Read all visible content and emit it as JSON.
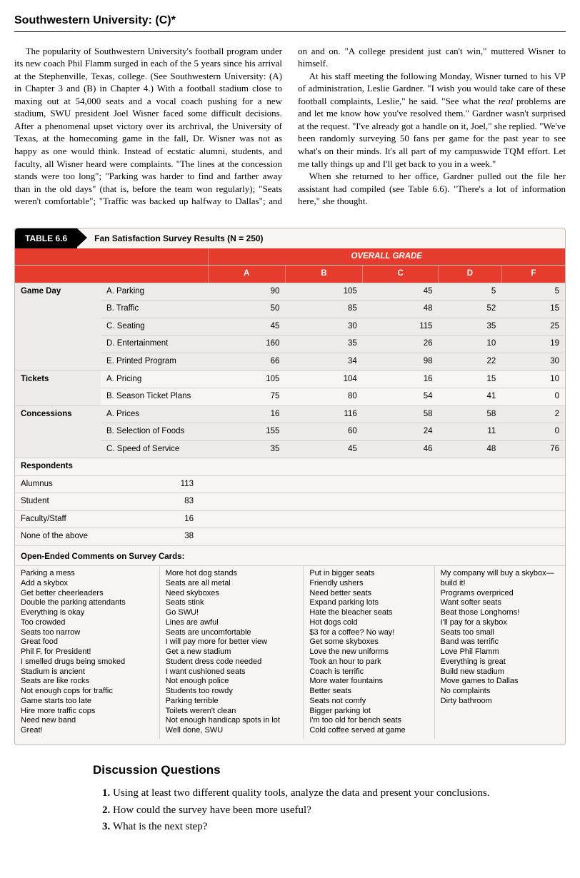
{
  "headline": "Southwestern University: (C)*",
  "para1": "The popularity of Southwestern University's football program under its new coach Phil Flamm surged in each of the 5 years since his arrival at the Stephenville, Texas, college. (See Southwestern University: (A) in Chapter 3 and (B) in Chapter 4.) With a football stadium close to maxing out at 54,000 seats and a vocal coach pushing for a new stadium, SWU president Joel Wisner faced some difficult decisions. After a phenomenal upset victory over its archrival, the University of Texas, at the homecoming game in the fall, Dr. Wisner was not as happy as one would think. Instead of ecstatic alumni, students, and faculty, all Wisner heard were complaints. \"The lines at the concession stands were too long\"; \"Parking was harder to find and farther away than in the old days\" (that is, before the team won regularly); \"Seats weren't comfortable\"; \"Traffic was backed up halfway to Dallas\"; and on and on. \"A college president just can't win,\" muttered Wisner to himself.",
  "para2a": "At his staff meeting the following Monday, Wisner turned to his VP of administration, Leslie Gardner. \"I wish you would take care of these football complaints, Leslie,\" he said. \"See what the ",
  "para2b": " problems are and let me know how you've resolved them.\" Gardner wasn't surprised at the request. \"I've already got a handle on it, Joel,\" she replied. \"We've been randomly surveying 50 fans per game for the past year to see what's on their minds. It's all part of my campuswide TQM effort. Let me tally things up and I'll get back to you in a week.\"",
  "para2ital": "real",
  "para3": "When she returned to her office, Gardner pulled out the file her assistant had compiled (see Table 6.6). \"There's a lot of information here,\" she thought.",
  "table": {
    "tab": "TABLE 6.6",
    "caption": "Fan Satisfaction Survey Results (N = 250)",
    "overall_label": "OVERALL GRADE",
    "grade_cols": [
      "A",
      "B",
      "C",
      "D",
      "F"
    ],
    "sections": [
      {
        "name": "Game Day",
        "rows": [
          {
            "item": "A. Parking",
            "vals": [
              90,
              105,
              45,
              5,
              5
            ]
          },
          {
            "item": "B. Traffic",
            "vals": [
              50,
              85,
              48,
              52,
              15
            ]
          },
          {
            "item": "C. Seating",
            "vals": [
              45,
              30,
              115,
              35,
              25
            ]
          },
          {
            "item": "D. Entertainment",
            "vals": [
              160,
              35,
              26,
              10,
              19
            ]
          },
          {
            "item": "E. Printed Program",
            "vals": [
              66,
              34,
              98,
              22,
              30
            ]
          }
        ]
      },
      {
        "name": "Tickets",
        "rows": [
          {
            "item": "A. Pricing",
            "vals": [
              105,
              104,
              16,
              15,
              10
            ]
          },
          {
            "item": "B. Season Ticket Plans",
            "vals": [
              75,
              80,
              54,
              41,
              0
            ]
          }
        ]
      },
      {
        "name": "Concessions",
        "rows": [
          {
            "item": "A. Prices",
            "vals": [
              16,
              116,
              58,
              58,
              2
            ]
          },
          {
            "item": "B. Selection of Foods",
            "vals": [
              155,
              60,
              24,
              11,
              0
            ]
          },
          {
            "item": "C. Speed of Service",
            "vals": [
              35,
              45,
              46,
              48,
              76
            ]
          }
        ]
      }
    ],
    "respondents_label": "Respondents",
    "respondents": [
      {
        "label": "Alumnus",
        "val": 113
      },
      {
        "label": "Student",
        "val": 83
      },
      {
        "label": "Faculty/Staff",
        "val": 16
      },
      {
        "label": "None of the above",
        "val": 38
      }
    ],
    "comments_head": "Open-Ended Comments on Survey Cards:",
    "comments_cols": [
      "Parking a mess\nAdd a skybox\nGet better cheerleaders\nDouble the parking attendants\nEverything is okay\nToo crowded\nSeats too narrow\nGreat food\nPhil F. for President!\nI smelled drugs being smoked\nStadium is ancient\nSeats are like rocks\nNot enough cops for traffic\nGame starts too late\nHire more traffic cops\nNeed new band\nGreat!",
      "More hot dog stands\nSeats are all metal\nNeed skyboxes\nSeats stink\nGo SWU!\nLines are awful\nSeats are uncomfortable\nI will pay more for better view\nGet a new stadium\nStudent dress code needed\nI want cushioned seats\nNot enough police\nStudents too rowdy\nParking terrible\nToilets weren't clean\nNot enough handicap spots in lot\nWell done, SWU",
      "Put in bigger seats\nFriendly ushers\nNeed better seats\nExpand parking lots\nHate the bleacher seats\nHot dogs cold\n$3 for a coffee? No way!\nGet some skyboxes\nLove the new uniforms\nTook an hour to park\nCoach is terrific\nMore water fountains\nBetter seats\nSeats not comfy\nBigger parking lot\nI'm too old for bench seats\nCold coffee served at game",
      "My company will buy a skybox—build it!\nPrograms overpriced\nWant softer seats\nBeat those Longhorns!\nI'll pay for a skybox\nSeats too small\nBand was terrific\nLove Phil Flamm\nEverything is great\nBuild new stadium\nMove games to Dallas\nNo complaints\nDirty bathroom"
    ]
  },
  "discussion": {
    "title": "Discussion Questions",
    "items": [
      "Using at least two different quality tools, analyze the data and present your conclusions.",
      "How could the survey have been more useful?",
      "What is the next step?"
    ]
  },
  "colors": {
    "header_red": "#e53c2e",
    "shade": "#eeeae7",
    "border": "#cfcfcf"
  }
}
